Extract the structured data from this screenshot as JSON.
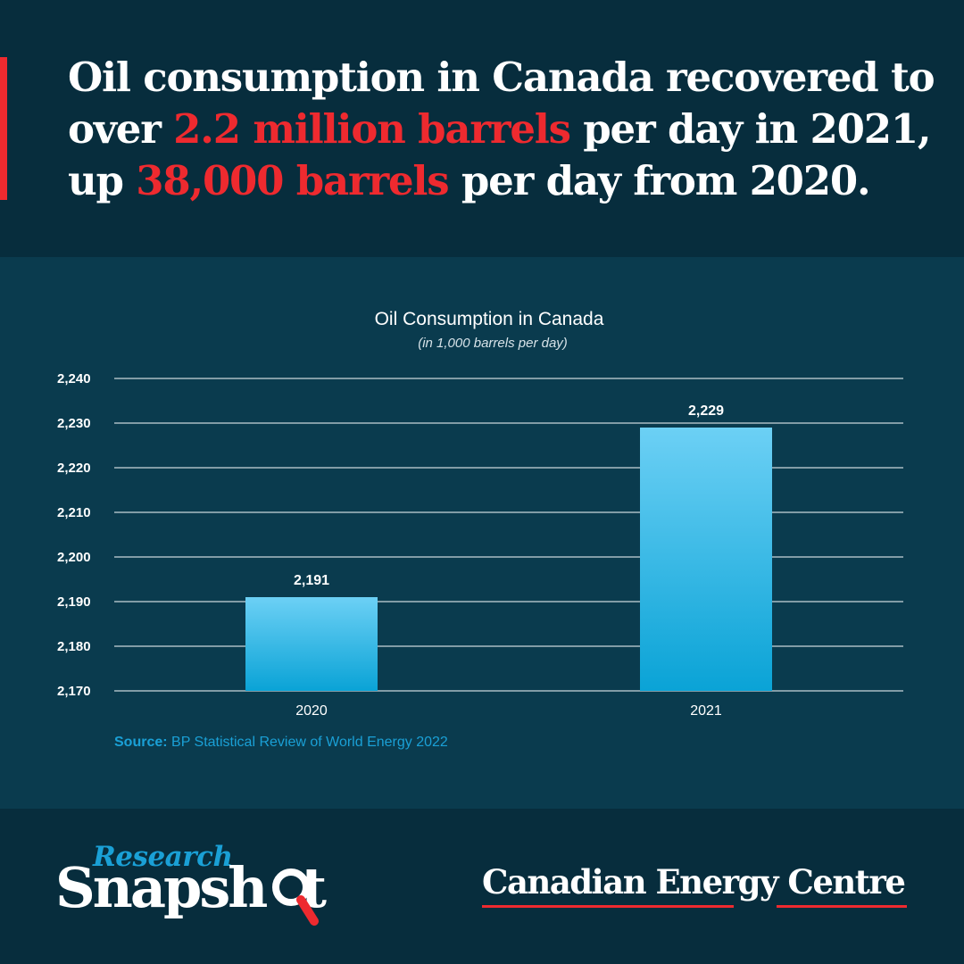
{
  "colors": {
    "background": "#072d3d",
    "panel": "#0a3b4e",
    "accent_red": "#ee2a2f",
    "accent_blue": "#1aa0d6",
    "bar_top": "#6cd0f5",
    "bar_bottom": "#0aa3d6"
  },
  "headline": {
    "part1": "Oil consumption in Canada recovered to over ",
    "highlight1": "2.2 million barrels",
    "part2": " per day in 2021, up ",
    "highlight2": "38,000 barrels",
    "part3": " per day from 2020."
  },
  "chart_data": {
    "type": "bar",
    "title": "Oil Consumption in Canada",
    "subtitle": "(in 1,000 barrels per day)",
    "categories": [
      "2020",
      "2021"
    ],
    "values": [
      2191,
      2229
    ],
    "data_labels": [
      "2,191",
      "2,229"
    ],
    "ylim": [
      2170,
      2240
    ],
    "yticks": [
      2170,
      2180,
      2190,
      2200,
      2210,
      2220,
      2230,
      2240
    ],
    "ytick_labels": [
      "2,170",
      "2,180",
      "2,190",
      "2,200",
      "2,210",
      "2,220",
      "2,230",
      "2,240"
    ],
    "grid": true,
    "legend": "none"
  },
  "source": {
    "label": "Source:",
    "text": " BP Statistical Review of World Energy 2022"
  },
  "footer": {
    "research": "Research",
    "snapshot": "Snapsh",
    "snapshot_end": "t",
    "magnifier_icon": "magnifier-icon",
    "cec_logo": "Canadian Energy Centre"
  }
}
